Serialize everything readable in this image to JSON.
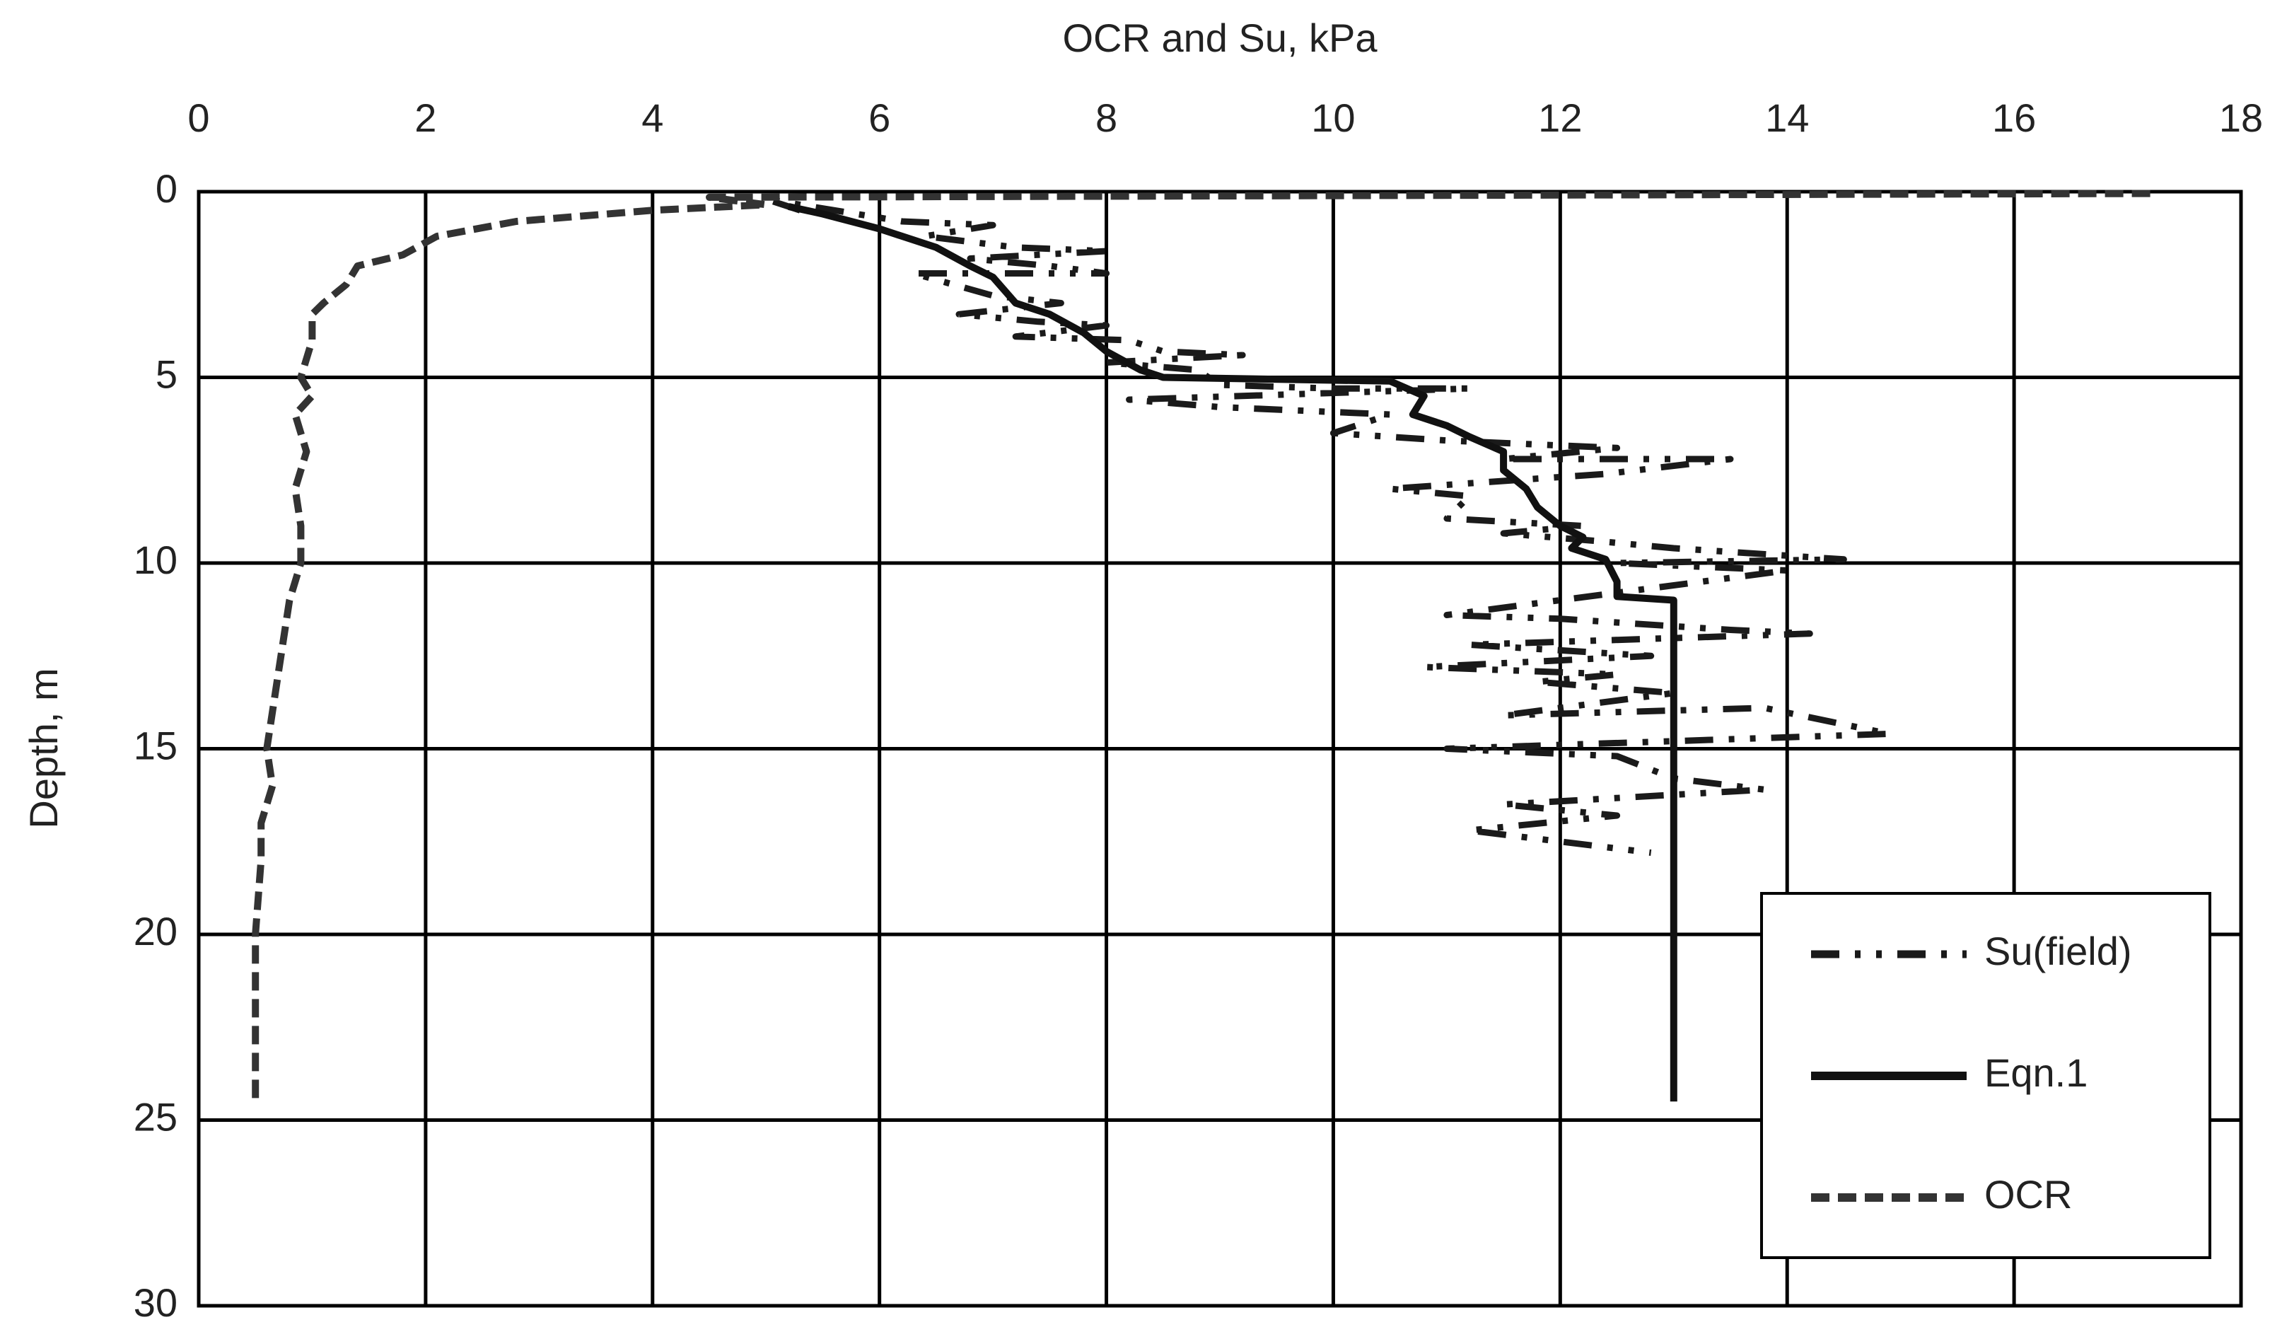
{
  "chart_data": {
    "type": "line",
    "title": "OCR and Su, kPa",
    "y_label": "Depth, m",
    "xlim": [
      0,
      18
    ],
    "xticks": [
      0,
      2,
      4,
      6,
      8,
      10,
      12,
      14,
      16,
      18
    ],
    "ylim": [
      0,
      30
    ],
    "yticks": [
      0,
      5,
      10,
      15,
      20,
      25,
      30
    ],
    "y_reversed": true,
    "x_axis_top": true,
    "grid": true,
    "legend": "lower right",
    "series": [
      {
        "name": "Su(field)",
        "color": "#1a1a1a",
        "style": "dashdot",
        "x": [
          5.3,
          5.0,
          6.2,
          7.0,
          6.4,
          7.2,
          8.0,
          6.8,
          7.5,
          8.0,
          6.3,
          7.0,
          7.6,
          6.7,
          7.4,
          8.0,
          7.2,
          8.2,
          8.5,
          9.2,
          8.0,
          8.8,
          9.0,
          10.0,
          11.2,
          8.2,
          9.0,
          10.5,
          10.0,
          11.0,
          12.5,
          11.5,
          13.5,
          12.4,
          10.5,
          11.2,
          11.0,
          12.2,
          11.5,
          12.3,
          13.0,
          14.5,
          12.5,
          14.0,
          11.0,
          12.0,
          13.5,
          14.2,
          11.2,
          12.8,
          10.8,
          12.5,
          11.8,
          13.0,
          11.5,
          13.8,
          14.9,
          11.0,
          12.5,
          13.0,
          13.8,
          11.5,
          12.5,
          11.2,
          12.8
        ],
        "values": [
          0.5,
          0.2,
          0.8,
          0.9,
          1.2,
          1.5,
          1.6,
          1.8,
          2.0,
          2.2,
          2.2,
          2.8,
          3.0,
          3.3,
          3.5,
          3.6,
          3.9,
          4.0,
          4.3,
          4.4,
          4.6,
          4.8,
          5.2,
          5.3,
          5.3,
          5.6,
          5.8,
          6.0,
          6.5,
          6.7,
          6.9,
          7.2,
          7.2,
          7.6,
          8.0,
          8.2,
          8.8,
          9.0,
          9.2,
          9.4,
          9.6,
          9.9,
          10.0,
          10.2,
          11.4,
          11.5,
          11.8,
          11.9,
          12.2,
          12.5,
          12.8,
          13.0,
          13.2,
          13.5,
          14.1,
          13.9,
          14.6,
          15.0,
          15.2,
          15.8,
          16.1,
          16.5,
          16.8,
          17.2,
          17.8
        ]
      },
      {
        "name": "Eqn.1",
        "color": "#111111",
        "style": "solid",
        "x": [
          5.2,
          5.5,
          6.0,
          6.5,
          6.8,
          7.0,
          7.2,
          7.5,
          7.8,
          8.0,
          8.3,
          8.5,
          10.5,
          10.8,
          10.7,
          11.0,
          11.2,
          11.5,
          11.5,
          11.7,
          11.8,
          12.0,
          12.2,
          12.1,
          12.4,
          12.5,
          12.5,
          13.0,
          13.0
        ],
        "values": [
          0.4,
          0.6,
          1.0,
          1.5,
          2.0,
          2.3,
          3.0,
          3.3,
          3.8,
          4.3,
          4.8,
          5.0,
          5.1,
          5.5,
          6.0,
          6.3,
          6.6,
          7.0,
          7.5,
          8.0,
          8.5,
          9.0,
          9.3,
          9.6,
          9.9,
          10.5,
          10.9,
          11.0,
          24.5
        ]
      },
      {
        "name": "OCR",
        "color": "#333333",
        "style": "dashed",
        "x": [
          17.2,
          4.5,
          5.0,
          4.0,
          2.8,
          2.1,
          1.8,
          1.4,
          1.3,
          1.1,
          1.0,
          1.0,
          0.9,
          1.0,
          0.85,
          0.95,
          0.85,
          0.9,
          0.9,
          0.8,
          0.75,
          0.7,
          0.65,
          0.6,
          0.65,
          0.55,
          0.55,
          0.5,
          0.5,
          0.5
        ],
        "values": [
          0.05,
          0.15,
          0.35,
          0.5,
          0.8,
          1.2,
          1.7,
          2.0,
          2.5,
          3.0,
          3.3,
          4.0,
          5.0,
          5.5,
          6.0,
          7.0,
          8.0,
          9.0,
          10.0,
          11.0,
          12.0,
          13.0,
          14.0,
          15.0,
          16.0,
          17.0,
          18.0,
          20.0,
          22.0,
          24.5
        ]
      }
    ]
  }
}
